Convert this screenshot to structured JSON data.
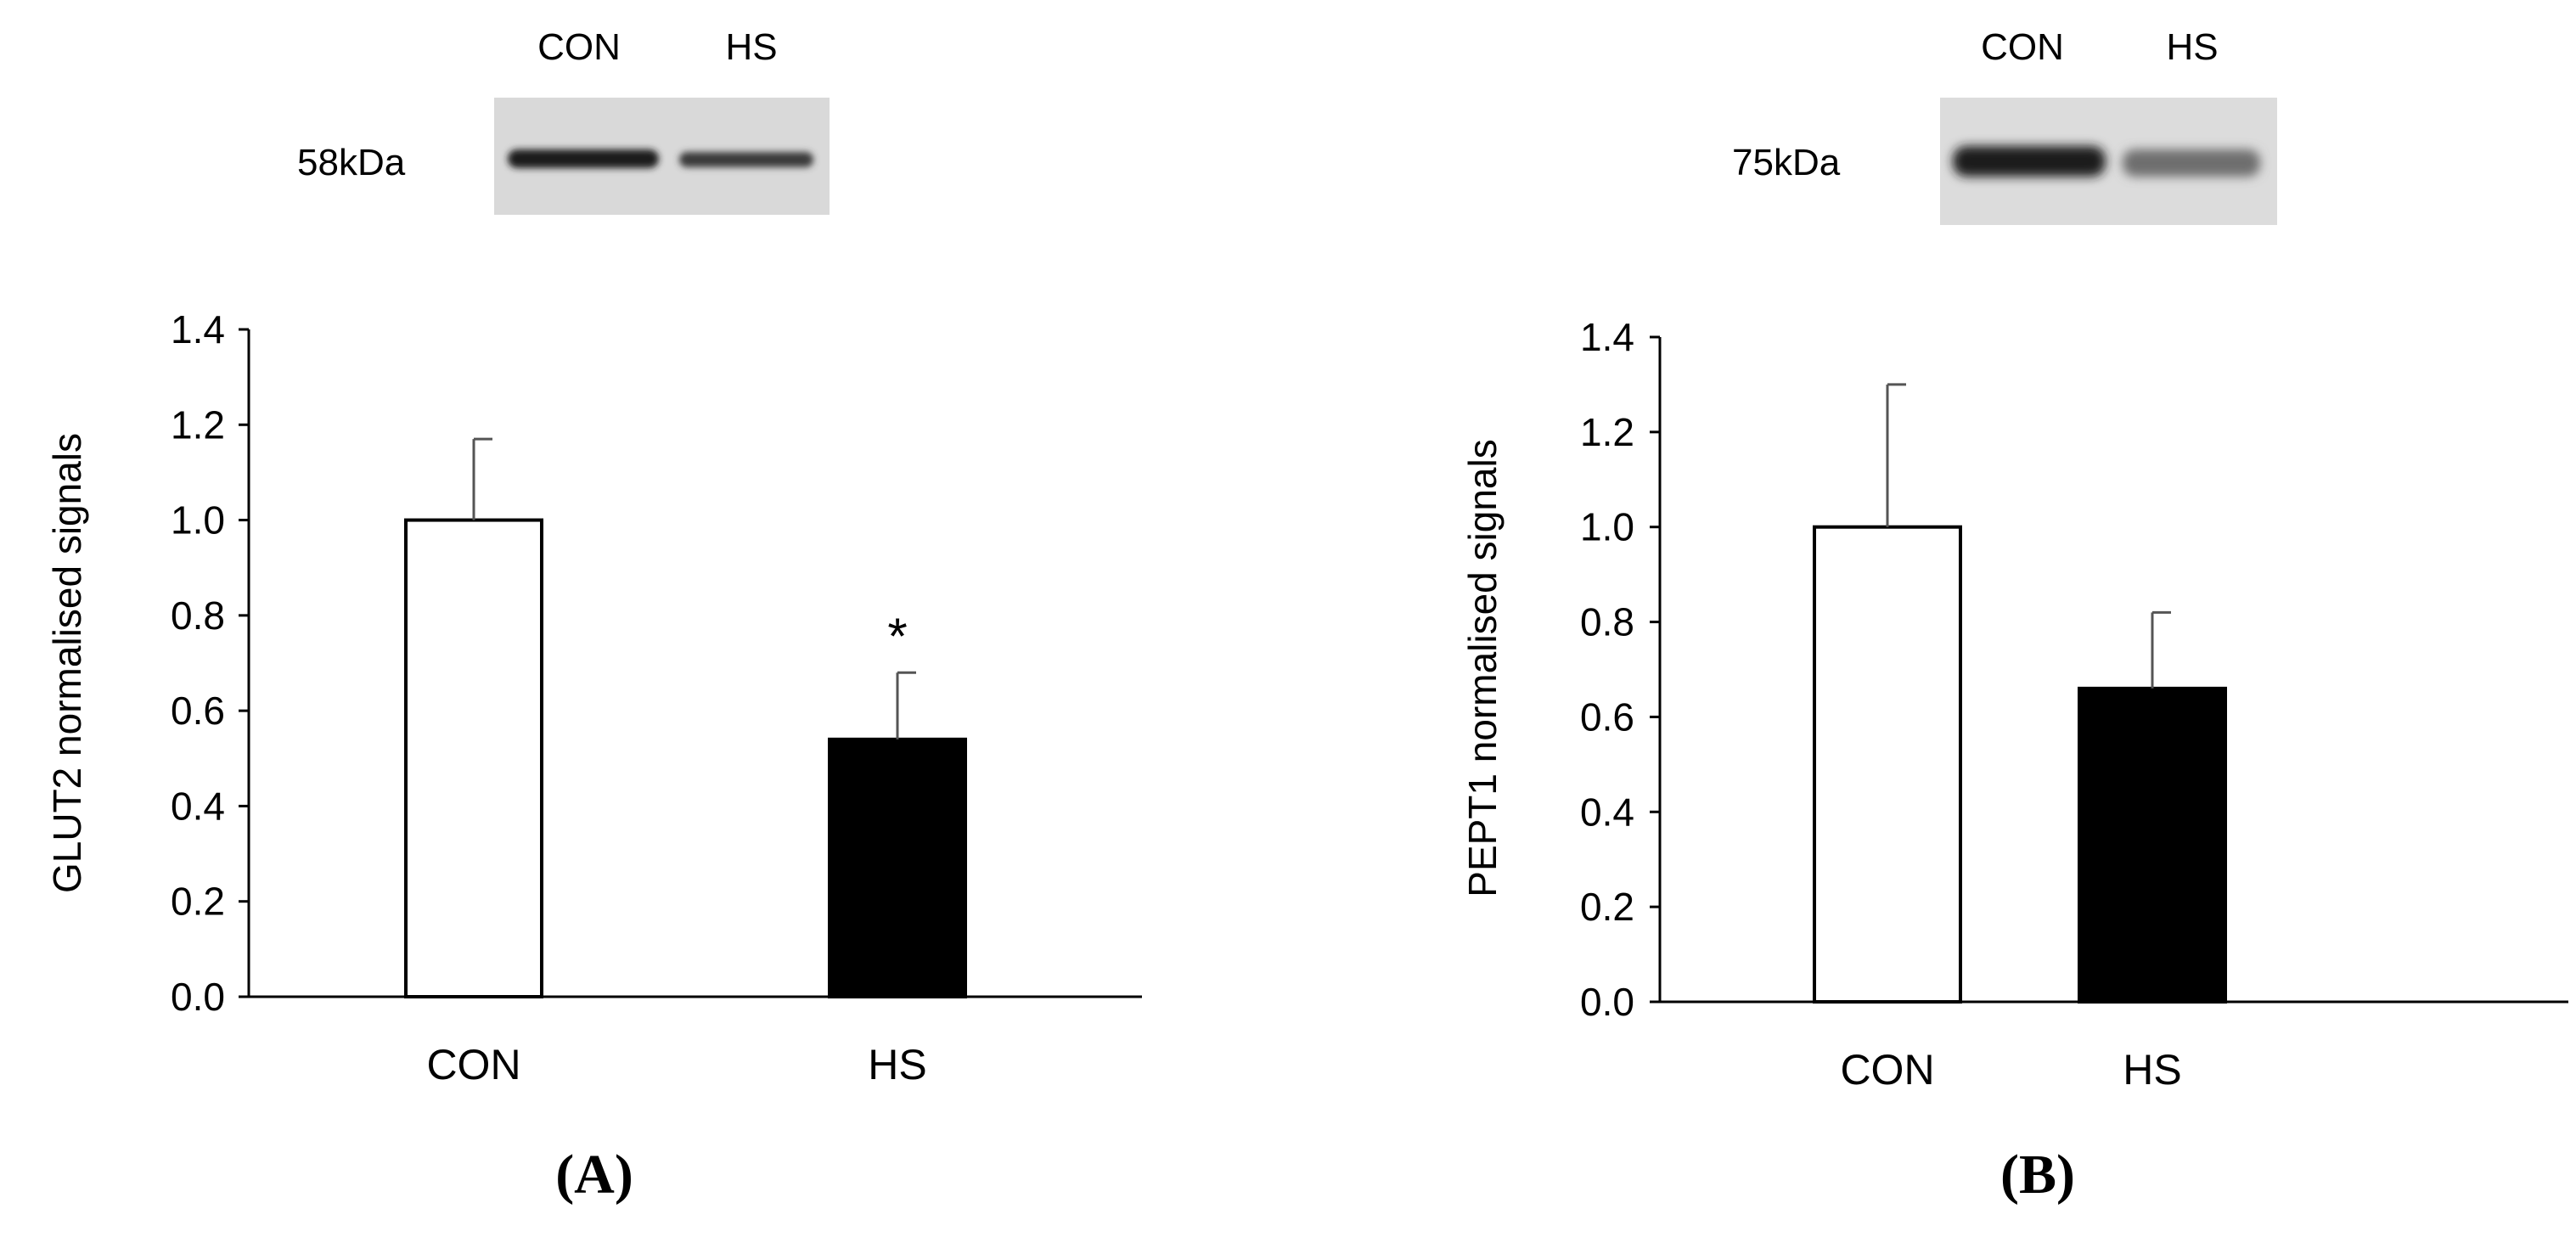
{
  "chart_data": [
    {
      "type": "bar",
      "panel_label": "(A)",
      "title": "",
      "xlabel": "",
      "ylabel": "GLUT2 normalised signals",
      "categories": [
        "CON",
        "HS"
      ],
      "series": [
        {
          "values": [
            1.0,
            0.54
          ],
          "errors": [
            0.17,
            0.14
          ]
        }
      ],
      "bar_colors": [
        "#ffffff",
        "#000000"
      ],
      "annotations": [
        {
          "category": "HS",
          "text": "*"
        }
      ],
      "ylim": [
        0,
        1.4
      ],
      "yticks": [
        "0.0",
        "0.2",
        "0.4",
        "0.6",
        "0.8",
        "1.0",
        "1.2",
        "1.4"
      ],
      "grid": false,
      "legend": "none",
      "blot": {
        "marker": "58kDa",
        "lanes": [
          "CON",
          "HS"
        ]
      }
    },
    {
      "type": "bar",
      "panel_label": "(B)",
      "title": "",
      "xlabel": "",
      "ylabel": "PEPT1 normalised signals",
      "categories": [
        "CON",
        "HS"
      ],
      "series": [
        {
          "values": [
            1.0,
            0.66
          ],
          "errors": [
            0.3,
            0.16
          ]
        }
      ],
      "bar_colors": [
        "#ffffff",
        "#000000"
      ],
      "annotations": [],
      "ylim": [
        0,
        1.4
      ],
      "yticks": [
        "0.0",
        "0.2",
        "0.4",
        "0.6",
        "0.8",
        "1.0",
        "1.2",
        "1.4"
      ],
      "grid": false,
      "legend": "none",
      "blot": {
        "marker": "75kDa",
        "lanes": [
          "CON",
          "HS"
        ]
      }
    }
  ]
}
